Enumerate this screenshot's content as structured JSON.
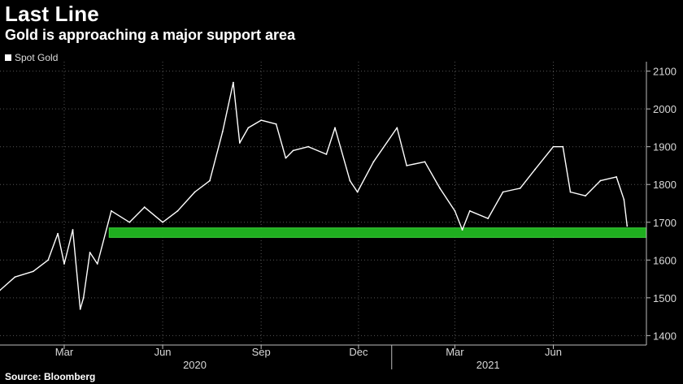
{
  "header": {
    "title": "Last Line",
    "subtitle": "Gold is approaching a major support area"
  },
  "legend": {
    "label": "Spot Gold",
    "color": "#ffffff"
  },
  "footer": {
    "source": "Source: Bloomberg"
  },
  "colors": {
    "background": "#000000",
    "series": "#ffffff",
    "support_band": "#1fae1f",
    "grid": "#555555"
  },
  "chart_data": {
    "type": "line",
    "title": "Last Line",
    "subtitle": "Gold is approaching a major support area",
    "xlabel": "",
    "ylabel": "",
    "series": [
      {
        "name": "Spot Gold",
        "x": [
          "2020-01-01",
          "2020-01-15",
          "2020-02-01",
          "2020-02-15",
          "2020-02-24",
          "2020-03-01",
          "2020-03-09",
          "2020-03-16",
          "2020-03-19",
          "2020-03-25",
          "2020-04-01",
          "2020-04-14",
          "2020-05-01",
          "2020-05-15",
          "2020-06-01",
          "2020-06-15",
          "2020-07-01",
          "2020-07-15",
          "2020-07-27",
          "2020-08-06",
          "2020-08-12",
          "2020-08-20",
          "2020-09-01",
          "2020-09-15",
          "2020-09-24",
          "2020-10-01",
          "2020-10-15",
          "2020-11-01",
          "2020-11-09",
          "2020-11-23",
          "2020-11-30",
          "2020-12-15",
          "2021-01-06",
          "2021-01-15",
          "2021-02-01",
          "2021-02-15",
          "2021-03-01",
          "2021-03-08",
          "2021-03-15",
          "2021-04-01",
          "2021-04-15",
          "2021-05-01",
          "2021-05-15",
          "2021-06-01",
          "2021-06-10",
          "2021-06-17",
          "2021-07-01",
          "2021-07-15",
          "2021-07-30",
          "2021-08-06",
          "2021-08-09"
        ],
        "values": [
          1520,
          1555,
          1570,
          1600,
          1670,
          1590,
          1680,
          1470,
          1500,
          1620,
          1590,
          1730,
          1700,
          1740,
          1700,
          1730,
          1780,
          1810,
          1940,
          2070,
          1910,
          1950,
          1970,
          1960,
          1870,
          1890,
          1900,
          1880,
          1950,
          1810,
          1780,
          1860,
          1950,
          1850,
          1860,
          1790,
          1730,
          1680,
          1730,
          1710,
          1780,
          1790,
          1840,
          1900,
          1900,
          1780,
          1770,
          1810,
          1820,
          1760,
          1690
        ]
      }
    ],
    "yticks": [
      1400,
      1500,
      1600,
      1700,
      1800,
      1900,
      2000,
      2100
    ],
    "ylim": [
      1375,
      2125
    ],
    "xlim": [
      "2020-01-01",
      "2021-08-27"
    ],
    "xticks": [
      {
        "label": "Mar",
        "date": "2020-03-01"
      },
      {
        "label": "Jun",
        "date": "2020-06-01"
      },
      {
        "label": "Sep",
        "date": "2020-09-01"
      },
      {
        "label": "Dec",
        "date": "2020-12-01"
      },
      {
        "label": "Mar",
        "date": "2021-03-01"
      },
      {
        "label": "Jun",
        "date": "2021-06-01"
      }
    ],
    "year_labels": [
      {
        "label": "2020",
        "date": "2020-07-01"
      },
      {
        "label": "2021",
        "date": "2021-04-01"
      }
    ],
    "year_separator": "2021-01-01",
    "support_band": {
      "from": "2020-04-12",
      "to": "2021-08-27",
      "low": 1660,
      "high": 1685
    },
    "grid": true,
    "legend_position": "top-left",
    "y_axis_position": "right"
  }
}
